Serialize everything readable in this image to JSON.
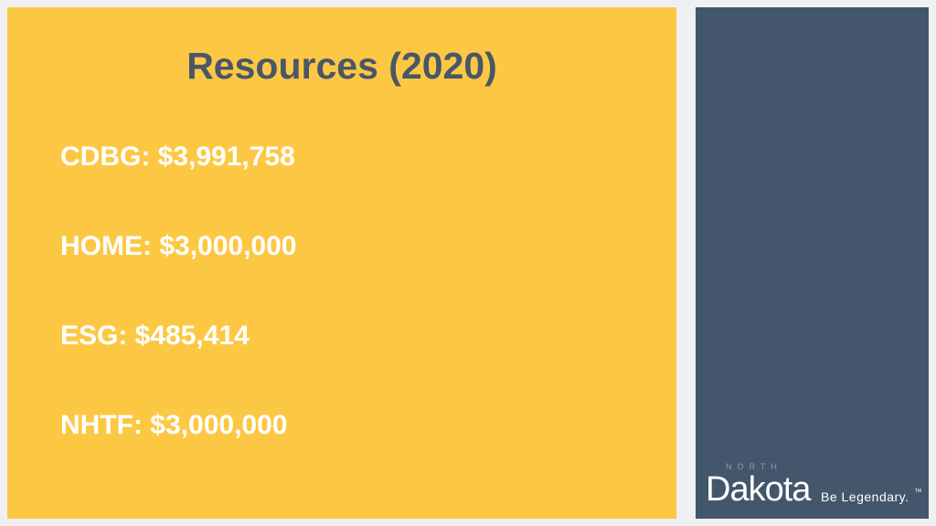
{
  "slide": {
    "title": "Resources (2020)",
    "items": [
      "CDBG: $3,991,758",
      "HOME: $3,000,000",
      "ESG: $485,414",
      "NHTF: $3,000,000"
    ]
  },
  "logo": {
    "north": "NORTH",
    "name": "Dakota",
    "tagline": "Be Legendary.",
    "trademark": "TM"
  },
  "colors": {
    "panel_yellow": "#fcc844",
    "panel_slate": "#44566b",
    "title_text": "#4a5669",
    "body_text": "#ffffff",
    "background": "#eef0f2"
  }
}
